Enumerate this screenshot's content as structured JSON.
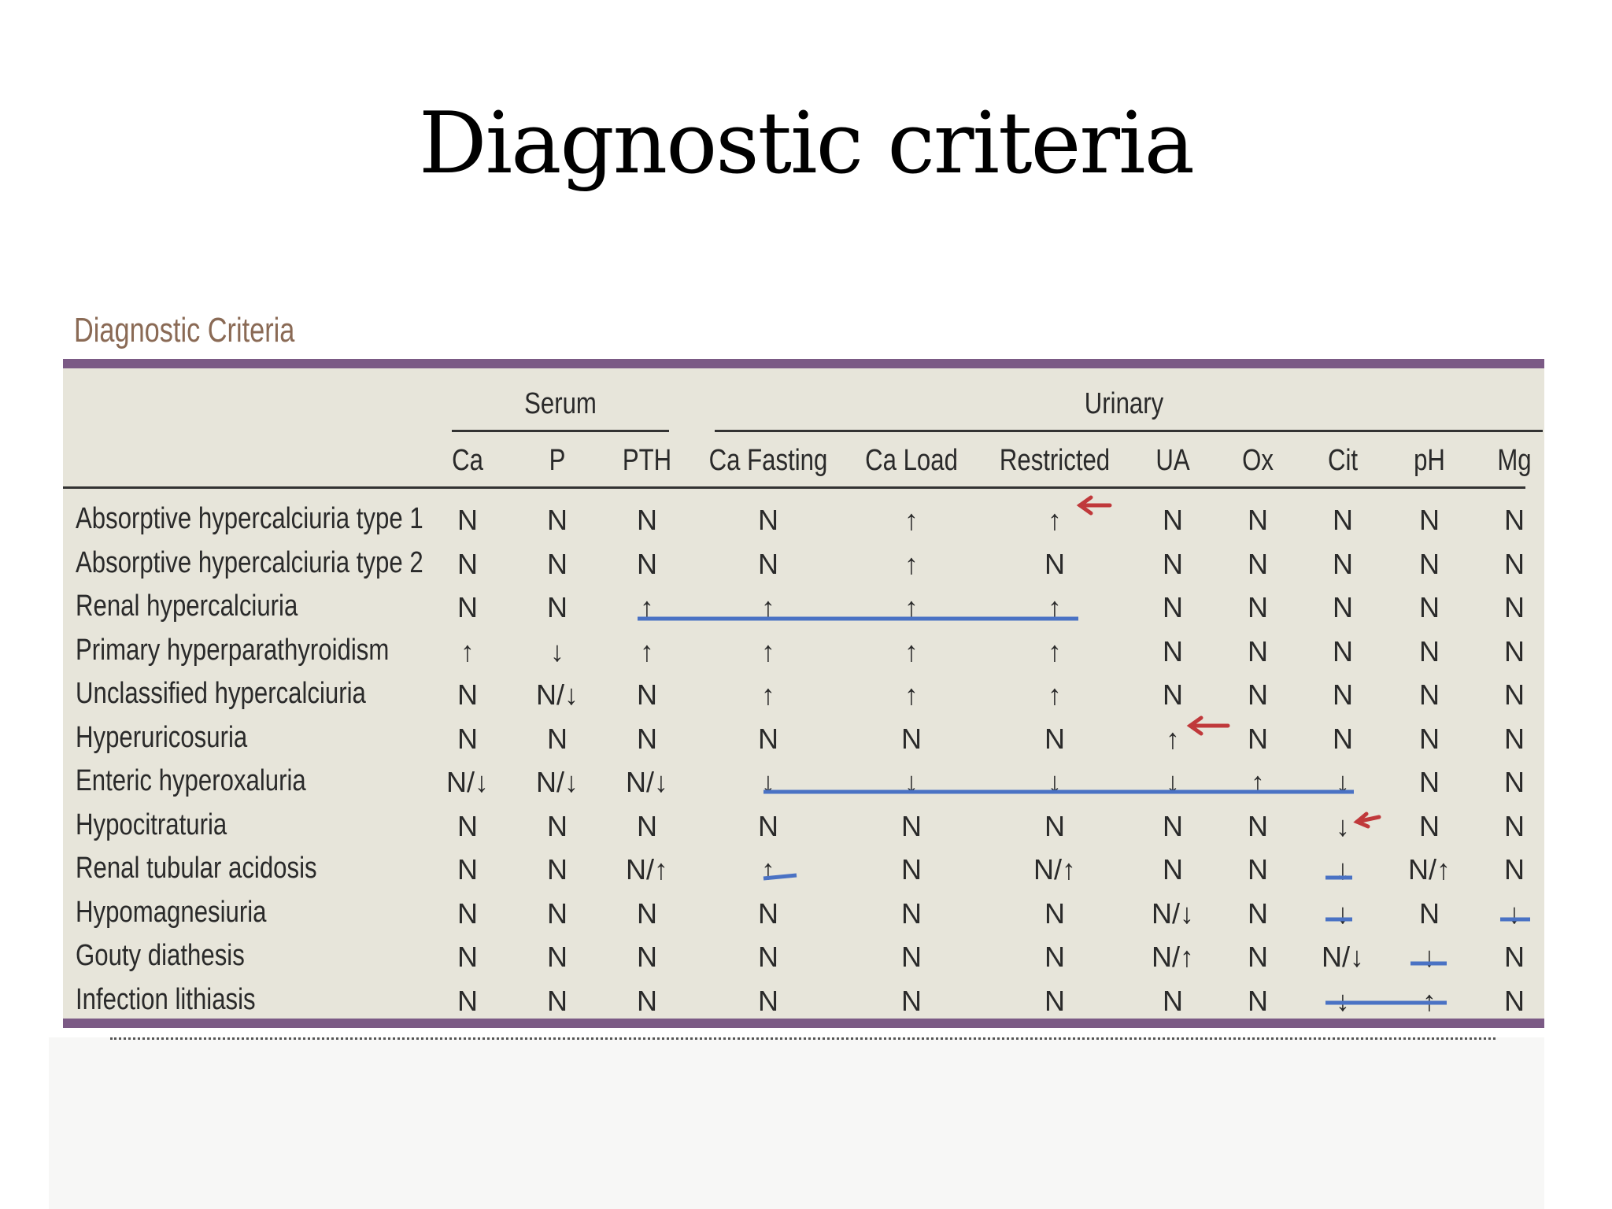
{
  "slide": {
    "title": "Diagnostic criteria"
  },
  "table": {
    "caption": "Diagnostic Criteria",
    "groups": [
      {
        "label": "Serum"
      },
      {
        "label": "Urinary"
      }
    ],
    "columns": [
      "Ca",
      "P",
      "PTH",
      "Ca Fasting",
      "Ca Load",
      "Restricted",
      "UA",
      "Ox",
      "Cit",
      "pH",
      "Mg"
    ],
    "rows": [
      {
        "label": "Absorptive hypercalciuria type 1",
        "values": [
          "N",
          "N",
          "N",
          "N",
          "↑",
          "↑",
          "N",
          "N",
          "N",
          "N",
          "N"
        ]
      },
      {
        "label": "Absorptive hypercalciuria type 2",
        "values": [
          "N",
          "N",
          "N",
          "N",
          "↑",
          "N",
          "N",
          "N",
          "N",
          "N",
          "N"
        ]
      },
      {
        "label": "Renal hypercalciuria",
        "values": [
          "N",
          "N",
          "↑",
          "↑",
          "↑",
          "↑",
          "N",
          "N",
          "N",
          "N",
          "N"
        ]
      },
      {
        "label": "Primary hyperparathyroidism",
        "values": [
          "↑",
          "↓",
          "↑",
          "↑",
          "↑",
          "↑",
          "N",
          "N",
          "N",
          "N",
          "N"
        ]
      },
      {
        "label": "Unclassified hypercalciuria",
        "values": [
          "N",
          "N/↓",
          "N",
          "↑",
          "↑",
          "↑",
          "N",
          "N",
          "N",
          "N",
          "N"
        ]
      },
      {
        "label": "Hyperuricosuria",
        "values": [
          "N",
          "N",
          "N",
          "N",
          "N",
          "N",
          "↑",
          "N",
          "N",
          "N",
          "N"
        ]
      },
      {
        "label": "Enteric hyperoxaluria",
        "values": [
          "N/↓",
          "N/↓",
          "N/↓",
          "↓",
          "↓",
          "↓",
          "↓",
          "↑",
          "↓",
          "N",
          "N"
        ]
      },
      {
        "label": "Hypocitraturia",
        "values": [
          "N",
          "N",
          "N",
          "N",
          "N",
          "N",
          "N",
          "N",
          "↓",
          "N",
          "N"
        ]
      },
      {
        "label": "Renal tubular acidosis",
        "values": [
          "N",
          "N",
          "N/↑",
          "↑",
          "N",
          "N/↑",
          "N",
          "N",
          "↓",
          "N/↑",
          "N"
        ]
      },
      {
        "label": "Hypomagnesiuria",
        "values": [
          "N",
          "N",
          "N",
          "N",
          "N",
          "N",
          "N/↓",
          "N",
          "↓",
          "N",
          "↓"
        ]
      },
      {
        "label": "Gouty diathesis",
        "values": [
          "N",
          "N",
          "N",
          "N",
          "N",
          "N",
          "N/↑",
          "N",
          "N/↓",
          "↓",
          "N"
        ]
      },
      {
        "label": "Infection lithiasis",
        "values": [
          "N",
          "N",
          "N",
          "N",
          "N",
          "N",
          "N",
          "N",
          "↓",
          "↑",
          "N"
        ]
      }
    ]
  },
  "colors": {
    "accent_bar": "#7b5a85",
    "table_bg": "#e7e5da",
    "caption": "#8a6a55",
    "annotation_line": "#4a72c4",
    "annotation_arrow": "#c0393b"
  }
}
